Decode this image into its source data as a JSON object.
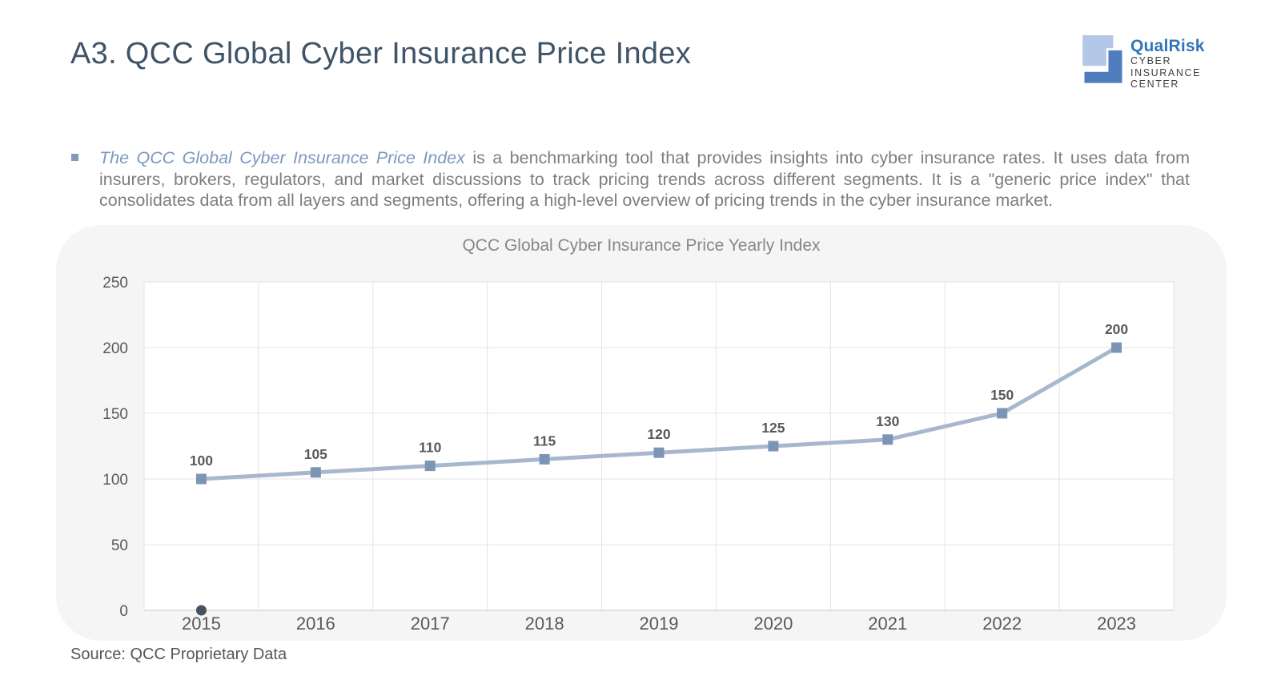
{
  "page": {
    "title": "A3. QCC Global Cyber Insurance Price Index",
    "source_note": "Source: QCC Proprietary Data"
  },
  "logo": {
    "brand": "QualRisk",
    "line1": "CYBER",
    "line2": "INSURANCE",
    "line3": "CENTER",
    "brand_color": "#3176b9",
    "mark_light_color": "#b4c7e7",
    "mark_dark_color": "#4f7dbf"
  },
  "intro": {
    "lead": "The QCC Global Cyber Insurance Price Index",
    "body": " is a benchmarking tool that provides insights into cyber insurance rates. It uses data from insurers, brokers, regulators, and market discussions to track pricing trends across different segments. It is a \"generic price index\" that consolidates data from all layers and segments, offering a high-level overview of pricing trends in the cyber insurance market."
  },
  "chart_data": {
    "type": "line",
    "title": "QCC Global Cyber Insurance Price Yearly Index",
    "categories": [
      "2015",
      "2016",
      "2017",
      "2018",
      "2019",
      "2020",
      "2021",
      "2022",
      "2023"
    ],
    "series": [
      {
        "values": [
          100,
          105,
          110,
          115,
          120,
          125,
          130,
          150,
          200
        ],
        "marker": "square",
        "line_color": "#a7b8ce",
        "marker_color": "#7d95b5",
        "data_labels": true
      },
      {
        "values": [
          0,
          null,
          null,
          null,
          null,
          null,
          null,
          null,
          null
        ],
        "marker": "circle",
        "line_color": null,
        "marker_color": "#455361",
        "data_labels": false
      }
    ],
    "ylim": [
      0,
      250
    ],
    "ytick_step": 50,
    "grid": true,
    "legend": false,
    "panel_bg": "#f5f5f5",
    "plot_bg": "#ffffff",
    "grid_color": "#e4e4e4",
    "axis_color": "#c9c9c9",
    "tick_color": "#595959",
    "data_label_color": "#595959"
  }
}
